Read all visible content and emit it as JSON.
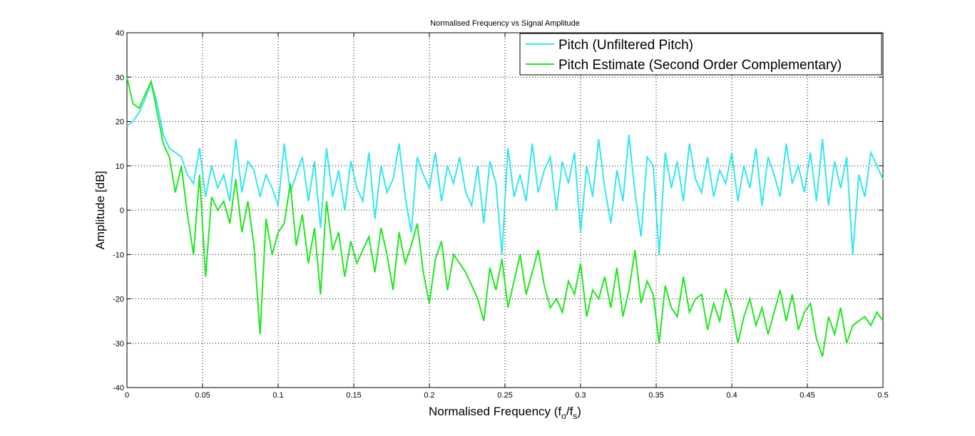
{
  "chart_data": {
    "type": "line",
    "title": "Normalised Frequency vs Signal Amplitude",
    "xlabel": {
      "main": "Normalised Frequency (f",
      "sub1": "o",
      "mid": "/f",
      "sub2": "s",
      "end": ")"
    },
    "ylabel": "Amplitude [dB]",
    "xlim": [
      0,
      0.5
    ],
    "ylim": [
      -40,
      40
    ],
    "xticks": [
      0,
      0.05,
      0.1,
      0.15,
      0.2,
      0.25,
      0.3,
      0.35,
      0.4,
      0.45,
      0.5
    ],
    "xtick_labels": [
      "0",
      "0.05",
      "0.1",
      "0.15",
      "0.2",
      "0.25",
      "0.3",
      "0.35",
      "0.4",
      "0.45",
      "0.5"
    ],
    "yticks": [
      40,
      30,
      20,
      10,
      0,
      -10,
      -20,
      -30,
      -40
    ],
    "ytick_labels": [
      "40",
      "30",
      "20",
      "10",
      "0",
      "-10",
      "-20",
      "-30",
      "-40"
    ],
    "grid": true,
    "legend_position": "top-right",
    "series": [
      {
        "name": "Pitch (Unfiltered Pitch)",
        "color": "#33e6f0",
        "x": [
          0,
          0.004,
          0.008,
          0.012,
          0.016,
          0.02,
          0.024,
          0.028,
          0.032,
          0.036,
          0.04,
          0.044,
          0.048,
          0.052,
          0.056,
          0.06,
          0.064,
          0.068,
          0.072,
          0.076,
          0.08,
          0.084,
          0.088,
          0.092,
          0.096,
          0.1,
          0.104,
          0.108,
          0.112,
          0.116,
          0.12,
          0.124,
          0.128,
          0.132,
          0.136,
          0.14,
          0.144,
          0.148,
          0.152,
          0.156,
          0.16,
          0.164,
          0.168,
          0.172,
          0.176,
          0.18,
          0.184,
          0.188,
          0.192,
          0.196,
          0.2,
          0.204,
          0.208,
          0.212,
          0.216,
          0.22,
          0.224,
          0.228,
          0.232,
          0.236,
          0.24,
          0.244,
          0.248,
          0.252,
          0.256,
          0.26,
          0.264,
          0.268,
          0.272,
          0.276,
          0.28,
          0.284,
          0.288,
          0.292,
          0.296,
          0.3,
          0.304,
          0.308,
          0.312,
          0.316,
          0.32,
          0.324,
          0.328,
          0.332,
          0.336,
          0.34,
          0.344,
          0.348,
          0.352,
          0.356,
          0.36,
          0.364,
          0.368,
          0.372,
          0.376,
          0.38,
          0.384,
          0.388,
          0.392,
          0.396,
          0.4,
          0.404,
          0.408,
          0.412,
          0.416,
          0.42,
          0.424,
          0.428,
          0.432,
          0.436,
          0.44,
          0.444,
          0.448,
          0.452,
          0.456,
          0.46,
          0.464,
          0.468,
          0.472,
          0.476,
          0.48,
          0.484,
          0.488,
          0.492,
          0.496,
          0.5
        ],
        "y": [
          19,
          20,
          22,
          25,
          29,
          24,
          17,
          14,
          13,
          12,
          8,
          6,
          14,
          3,
          10,
          5,
          8,
          2,
          16,
          4,
          11,
          9,
          3,
          8,
          5,
          1,
          15,
          4,
          8,
          12,
          2,
          11,
          -4,
          14,
          3,
          9,
          0,
          11,
          5,
          2,
          13,
          -2,
          10,
          4,
          7,
          15,
          3,
          -5,
          12,
          8,
          5,
          13,
          2,
          10,
          6,
          12,
          4,
          1,
          10,
          -3,
          11,
          6,
          -10,
          14,
          3,
          8,
          2,
          15,
          4,
          9,
          12,
          0,
          11,
          6,
          13,
          -5,
          10,
          3,
          16,
          5,
          -3,
          9,
          2,
          17,
          4,
          -6,
          12,
          10,
          -10,
          13,
          5,
          11,
          2,
          15,
          7,
          4,
          12,
          3,
          9,
          6,
          13,
          2,
          10,
          5,
          14,
          1,
          12,
          8,
          3,
          15,
          6,
          10,
          4,
          13,
          2,
          16,
          1,
          11,
          5,
          12,
          -10,
          8,
          3,
          13,
          10,
          7
        ]
      },
      {
        "name": "Pitch Estimate (Second Order Complementary)",
        "color": "#1ee81e",
        "x": [
          0,
          0.004,
          0.008,
          0.012,
          0.016,
          0.02,
          0.024,
          0.028,
          0.032,
          0.036,
          0.04,
          0.044,
          0.048,
          0.052,
          0.056,
          0.06,
          0.064,
          0.068,
          0.072,
          0.076,
          0.08,
          0.084,
          0.088,
          0.092,
          0.096,
          0.1,
          0.104,
          0.108,
          0.112,
          0.116,
          0.12,
          0.124,
          0.128,
          0.132,
          0.136,
          0.14,
          0.144,
          0.148,
          0.152,
          0.156,
          0.16,
          0.164,
          0.168,
          0.172,
          0.176,
          0.18,
          0.184,
          0.188,
          0.192,
          0.196,
          0.2,
          0.204,
          0.208,
          0.212,
          0.216,
          0.22,
          0.224,
          0.228,
          0.232,
          0.236,
          0.24,
          0.244,
          0.248,
          0.252,
          0.256,
          0.26,
          0.264,
          0.268,
          0.272,
          0.276,
          0.28,
          0.284,
          0.288,
          0.292,
          0.296,
          0.3,
          0.304,
          0.308,
          0.312,
          0.316,
          0.32,
          0.324,
          0.328,
          0.332,
          0.336,
          0.34,
          0.344,
          0.348,
          0.352,
          0.356,
          0.36,
          0.364,
          0.368,
          0.372,
          0.376,
          0.38,
          0.384,
          0.388,
          0.392,
          0.396,
          0.4,
          0.404,
          0.408,
          0.412,
          0.416,
          0.42,
          0.424,
          0.428,
          0.432,
          0.436,
          0.44,
          0.444,
          0.448,
          0.452,
          0.456,
          0.46,
          0.464,
          0.468,
          0.472,
          0.476,
          0.48,
          0.484,
          0.488,
          0.492,
          0.496,
          0.5
        ],
        "y": [
          30,
          24,
          23,
          26,
          29,
          22,
          15,
          12,
          4,
          10,
          -1,
          -10,
          8,
          -15,
          3,
          0,
          2,
          -3,
          7,
          -5,
          2,
          -8,
          -28,
          -2,
          -10,
          -5,
          -3,
          6,
          -8,
          -1,
          -12,
          -4,
          -19,
          2,
          -9,
          -5,
          -15,
          -7,
          -12,
          -9,
          -6,
          -14,
          -4,
          -10,
          -18,
          -5,
          -12,
          -8,
          -3,
          -14,
          -21,
          -11,
          -7,
          -18,
          -10,
          -12,
          -14,
          -17,
          -20,
          -25,
          -13,
          -18,
          -11,
          -22,
          -16,
          -10,
          -19,
          -14,
          -9,
          -17,
          -22,
          -20,
          -23,
          -16,
          -19,
          -12,
          -24,
          -18,
          -20,
          -15,
          -22,
          -13,
          -24,
          -18,
          -9,
          -21,
          -16,
          -19,
          -30,
          -17,
          -22,
          -24,
          -15,
          -23,
          -20,
          -19,
          -27,
          -21,
          -25,
          -18,
          -22,
          -30,
          -24,
          -20,
          -26,
          -22,
          -28,
          -23,
          -18,
          -25,
          -19,
          -27,
          -23,
          -21,
          -29,
          -33,
          -24,
          -28,
          -22,
          -30,
          -26,
          -25,
          -24,
          -26,
          -23,
          -25
        ]
      }
    ]
  }
}
